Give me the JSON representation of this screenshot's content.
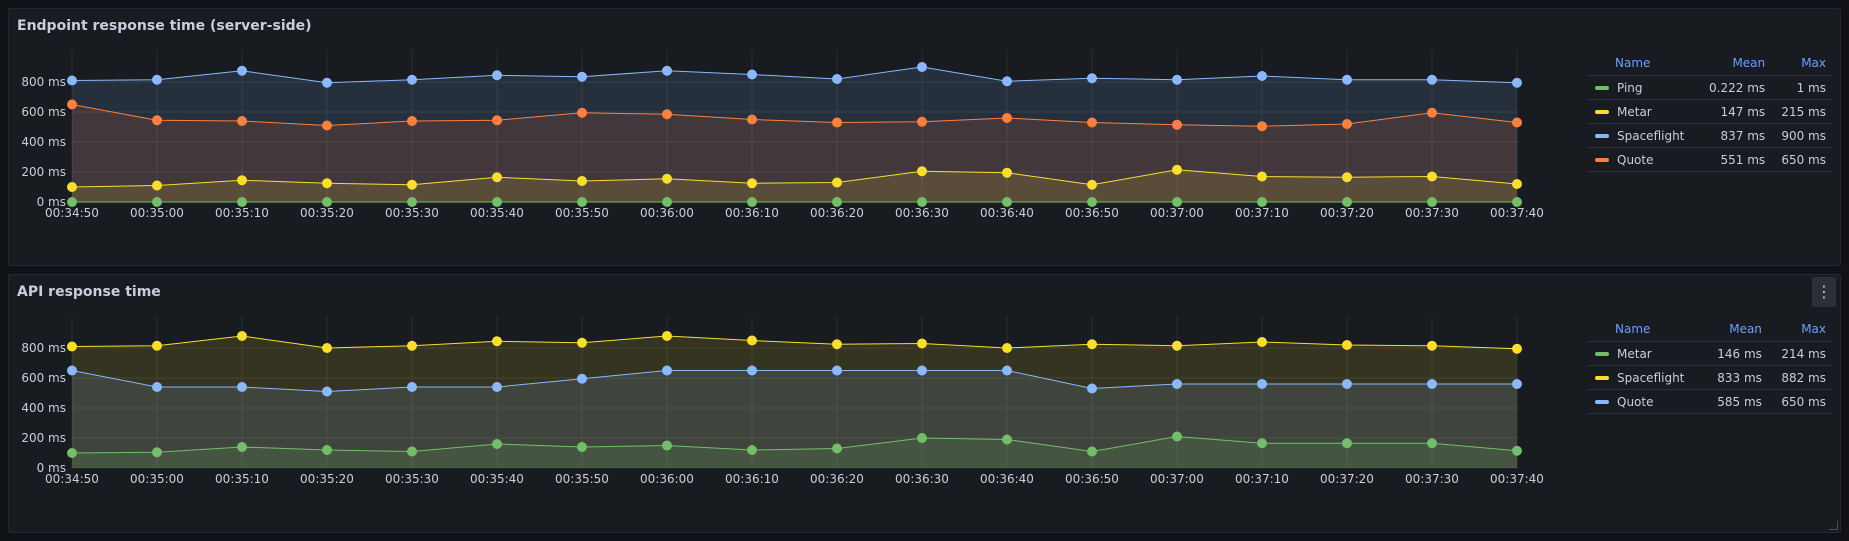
{
  "panels": [
    {
      "title": "Endpoint response time (server-side)",
      "legend": {
        "headers": {
          "name": "Name",
          "mean": "Mean",
          "max": "Max"
        },
        "rows": [
          {
            "name": "Ping",
            "mean": "0.222 ms",
            "max": "1 ms",
            "color": "#73bf69"
          },
          {
            "name": "Metar",
            "mean": "147 ms",
            "max": "215 ms",
            "color": "#fade2a"
          },
          {
            "name": "Spaceflight",
            "mean": "837 ms",
            "max": "900 ms",
            "color": "#8ab8ff"
          },
          {
            "name": "Quote",
            "mean": "551 ms",
            "max": "650 ms",
            "color": "#ff7f3d"
          }
        ]
      }
    },
    {
      "title": "API response time",
      "menu_icon": "kebab-menu-icon",
      "legend": {
        "headers": {
          "name": "Name",
          "mean": "Mean",
          "max": "Max"
        },
        "rows": [
          {
            "name": "Metar",
            "mean": "146 ms",
            "max": "214 ms",
            "color": "#73bf69"
          },
          {
            "name": "Spaceflight",
            "mean": "833 ms",
            "max": "882 ms",
            "color": "#fade2a"
          },
          {
            "name": "Quote",
            "mean": "585 ms",
            "max": "650 ms",
            "color": "#8ab8ff"
          }
        ]
      }
    }
  ],
  "chart_data": [
    {
      "type": "line",
      "title": "Endpoint response time (server-side)",
      "x": [
        "00:34:50",
        "00:34:55",
        "00:35:00",
        "00:35:05",
        "00:35:10",
        "00:35:15",
        "00:35:20",
        "00:35:25",
        "00:35:30",
        "00:35:35",
        "00:35:40",
        "00:35:45",
        "00:35:50",
        "00:35:55",
        "00:36:00",
        "00:36:05",
        "00:36:10",
        "00:36:15",
        "00:36:20",
        "00:36:25",
        "00:36:30",
        "00:36:35",
        "00:36:40",
        "00:36:45",
        "00:36:50",
        "00:36:55",
        "00:37:00",
        "00:37:05",
        "00:37:10",
        "00:37:15",
        "00:37:20",
        "00:37:25",
        "00:37:30",
        "00:37:35",
        "00:37:40"
      ],
      "xticks": [
        "00:34:50",
        "00:35:00",
        "00:35:10",
        "00:35:20",
        "00:35:30",
        "00:35:40",
        "00:35:50",
        "00:36:00",
        "00:36:10",
        "00:36:20",
        "00:36:30",
        "00:36:40",
        "00:36:50",
        "00:37:00",
        "00:37:10",
        "00:37:20",
        "00:37:30",
        "00:37:40"
      ],
      "yticks": [
        "0 ms",
        "200 ms",
        "400 ms",
        "600 ms",
        "800 ms"
      ],
      "ylim": [
        0,
        1000
      ],
      "grid": true,
      "legend_position": "right",
      "series": [
        {
          "name": "Spaceflight",
          "color": "#8ab8ff",
          "values": [
            810,
            null,
            815,
            null,
            875,
            null,
            795,
            null,
            815,
            null,
            845,
            null,
            835,
            null,
            875,
            null,
            850,
            null,
            820,
            null,
            900,
            null,
            805,
            null,
            825,
            null,
            815,
            null,
            840,
            null,
            815,
            null,
            815,
            null,
            795
          ]
        },
        {
          "name": "Quote",
          "color": "#ff7f3d",
          "values": [
            650,
            null,
            545,
            null,
            540,
            null,
            510,
            null,
            540,
            null,
            545,
            null,
            595,
            null,
            585,
            null,
            550,
            null,
            530,
            null,
            535,
            null,
            560,
            null,
            530,
            null,
            515,
            null,
            505,
            null,
            520,
            null,
            595,
            null,
            530
          ]
        },
        {
          "name": "Metar",
          "color": "#fade2a",
          "values": [
            100,
            null,
            110,
            null,
            145,
            null,
            125,
            null,
            115,
            null,
            165,
            null,
            140,
            null,
            155,
            null,
            125,
            null,
            130,
            null,
            205,
            null,
            195,
            null,
            115,
            null,
            215,
            null,
            170,
            null,
            165,
            null,
            170,
            null,
            120
          ]
        },
        {
          "name": "Ping",
          "color": "#73bf69",
          "values": [
            0,
            null,
            0,
            null,
            0,
            null,
            0,
            null,
            0,
            null,
            0,
            null,
            0,
            null,
            0,
            null,
            0,
            null,
            0,
            null,
            0,
            null,
            0,
            null,
            0,
            null,
            0,
            null,
            0,
            null,
            0,
            null,
            0,
            null,
            0
          ]
        }
      ]
    },
    {
      "type": "line",
      "title": "API response time",
      "x": [
        "00:34:50",
        "00:34:55",
        "00:35:00",
        "00:35:05",
        "00:35:10",
        "00:35:15",
        "00:35:20",
        "00:35:25",
        "00:35:30",
        "00:35:35",
        "00:35:40",
        "00:35:45",
        "00:35:50",
        "00:35:55",
        "00:36:00",
        "00:36:05",
        "00:36:10",
        "00:36:15",
        "00:36:20",
        "00:36:25",
        "00:36:30",
        "00:36:35",
        "00:36:40",
        "00:36:45",
        "00:36:50",
        "00:36:55",
        "00:37:00",
        "00:37:05",
        "00:37:10",
        "00:37:15",
        "00:37:20",
        "00:37:25",
        "00:37:30",
        "00:37:35",
        "00:37:40"
      ],
      "xticks": [
        "00:34:50",
        "00:35:00",
        "00:35:10",
        "00:35:20",
        "00:35:30",
        "00:35:40",
        "00:35:50",
        "00:36:00",
        "00:36:10",
        "00:36:20",
        "00:36:30",
        "00:36:40",
        "00:36:50",
        "00:37:00",
        "00:37:10",
        "00:37:20",
        "00:37:30",
        "00:37:40"
      ],
      "yticks": [
        "0 ms",
        "200 ms",
        "400 ms",
        "600 ms",
        "800 ms"
      ],
      "ylim": [
        0,
        1000
      ],
      "grid": true,
      "legend_position": "right",
      "series": [
        {
          "name": "Spaceflight",
          "color": "#fade2a",
          "values": [
            810,
            null,
            815,
            null,
            880,
            null,
            800,
            null,
            815,
            null,
            845,
            null,
            835,
            null,
            880,
            null,
            850,
            null,
            825,
            null,
            830,
            null,
            800,
            null,
            825,
            null,
            815,
            null,
            840,
            null,
            820,
            null,
            815,
            null,
            795
          ]
        },
        {
          "name": "Quote",
          "color": "#8ab8ff",
          "values": [
            650,
            null,
            540,
            null,
            540,
            null,
            510,
            null,
            540,
            null,
            540,
            null,
            595,
            null,
            650,
            null,
            650,
            null,
            650,
            null,
            650,
            null,
            650,
            null,
            530,
            null,
            560,
            null,
            560,
            null,
            560,
            null,
            560,
            null,
            560
          ]
        },
        {
          "name": "Metar",
          "color": "#73bf69",
          "values": [
            100,
            null,
            105,
            null,
            140,
            null,
            120,
            null,
            110,
            null,
            160,
            null,
            140,
            null,
            150,
            null,
            120,
            null,
            130,
            null,
            200,
            null,
            190,
            null,
            110,
            null,
            210,
            null,
            165,
            null,
            165,
            null,
            165,
            null,
            115
          ]
        }
      ]
    }
  ]
}
